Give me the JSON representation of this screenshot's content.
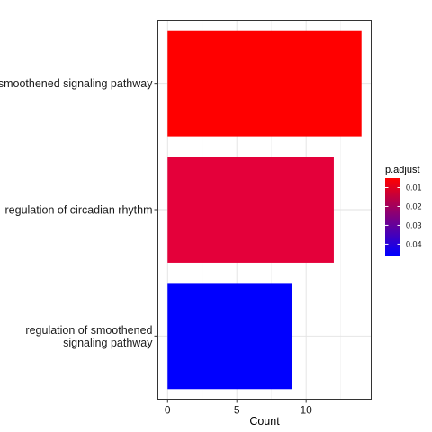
{
  "chart_data": {
    "type": "bar",
    "orientation": "horizontal",
    "categories": [
      "smoothened signaling pathway",
      "regulation of circadian rhythm",
      "regulation of smoothened signaling pathway"
    ],
    "category_label_lines": [
      [
        "smoothened signaling pathway"
      ],
      [
        "regulation of circadian rhythm"
      ],
      [
        "regulation of smoothened",
        "signaling pathway"
      ]
    ],
    "values": [
      14,
      12,
      9
    ],
    "p_adjust": [
      0.006,
      0.015,
      0.045
    ],
    "bar_colors": [
      "#FF0000",
      "#E4003A",
      "#0000FF"
    ],
    "xlabel": "Count",
    "ylabel": "",
    "xlim": [
      -0.7,
      14.7
    ],
    "x_ticks": [
      "0",
      "5",
      "10"
    ],
    "x_tick_values": [
      0,
      5,
      10
    ],
    "grid": true,
    "legend": {
      "title": "p.adjust",
      "placement": "right",
      "ticks": [
        "0.01",
        "0.02",
        "0.03",
        "0.04"
      ],
      "tick_values": [
        0.01,
        0.02,
        0.03,
        0.04
      ],
      "range": [
        0.005,
        0.046
      ],
      "low_color": "#FF0000",
      "high_color": "#0000FF"
    }
  }
}
